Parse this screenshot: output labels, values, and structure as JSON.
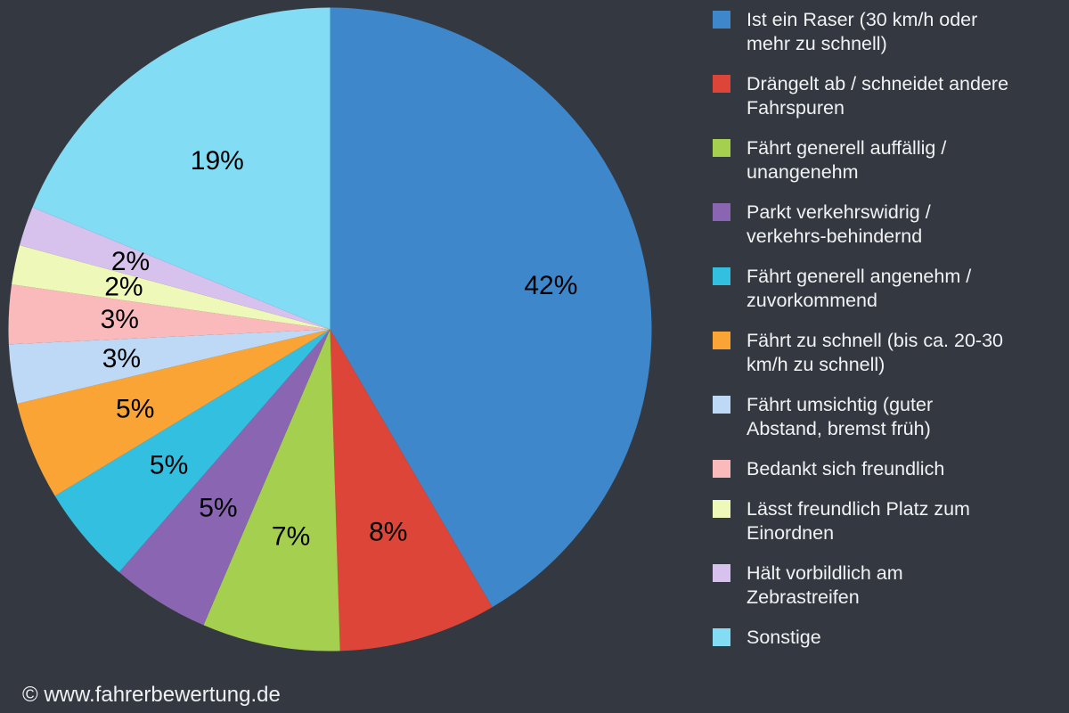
{
  "page": {
    "background_color": "#343840"
  },
  "chart_data": {
    "type": "pie",
    "title": "",
    "unit": "percent",
    "direction": "clockwise",
    "start_angle_deg": 0,
    "legend_position": "right",
    "categories": [
      "Ist ein Raser (30 km/h oder\nmehr zu schnell)",
      "Drängelt ab / schneidet andere\nFahrspuren",
      "Fährt generell auffällig /\nunangenehm",
      "Parkt verkehrswidrig /\nverkehrs-behindernd",
      "Fährt generell angenehm /\nzuvorkommend",
      "Fährt zu schnell (bis ca. 20-30\nkm/h zu schnell)",
      "Fährt umsichtig (guter\nAbstand, bremst früh)",
      "Bedankt sich freundlich",
      "Lässt freundlich Platz zum\nEinordnen",
      "Hält vorbildlich am\nZebrastreifen",
      "Sonstige"
    ],
    "values": [
      42,
      8,
      7,
      5,
      5,
      5,
      3,
      3,
      2,
      2,
      19
    ],
    "slice_labels": [
      "42%",
      "8%",
      "7%",
      "5%",
      "5%",
      "5%",
      "3%",
      "3%",
      "2%",
      "2%",
      "19%"
    ],
    "colors": [
      "#3e87cb",
      "#dc4538",
      "#a5cf4e",
      "#8a65b1",
      "#33bfe0",
      "#faa435",
      "#bed9f5",
      "#fab9bb",
      "#eef8b8",
      "#d7c2ee",
      "#82dcf4"
    ],
    "slice_label_color": "#000000",
    "legend_text_color": "#f1f2f4"
  },
  "footer": {
    "copyright": "© www.fahrerbewertung.de"
  }
}
